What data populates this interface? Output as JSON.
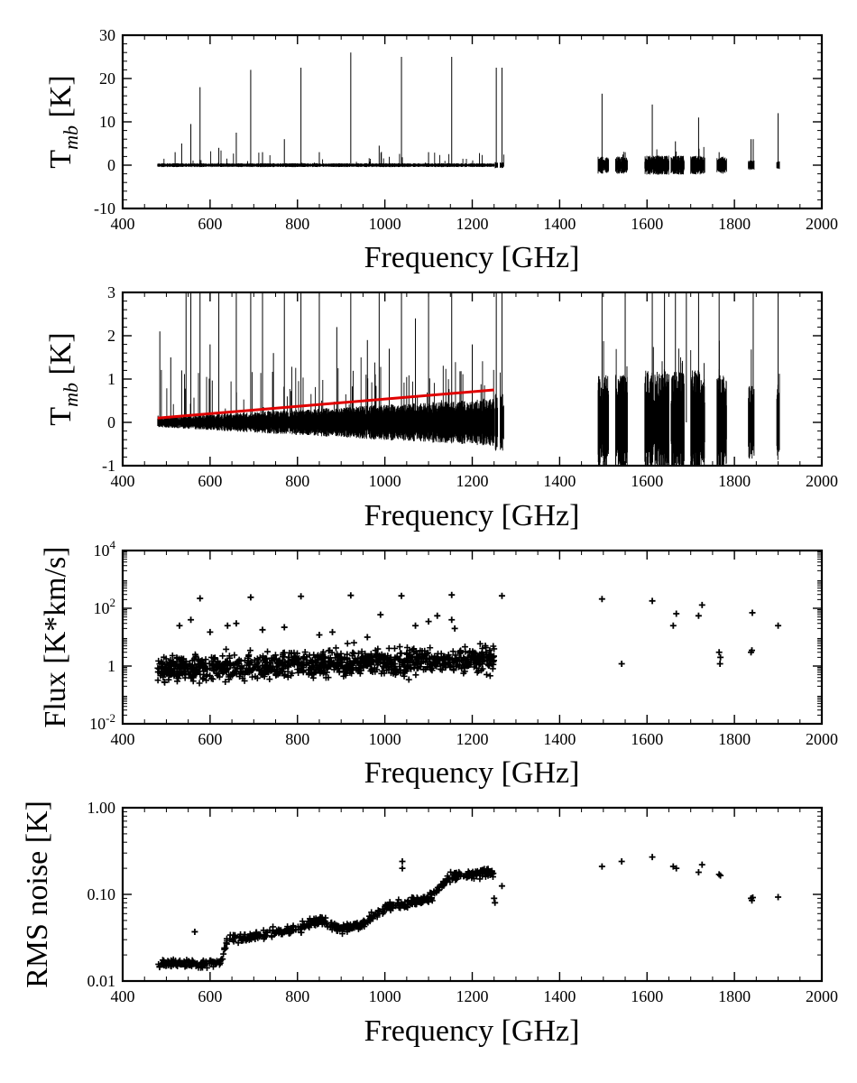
{
  "chart_data": [
    {
      "type": "line",
      "title": "",
      "xlabel": "Frequency [GHz]",
      "ylabel": {
        "main": "T",
        "sub": "mb",
        "unit": " [K]"
      },
      "xlim": [
        400,
        2000
      ],
      "ylim": [
        -10,
        30
      ],
      "xticks": [
        "400",
        "600",
        "800",
        "1000",
        "1200",
        "1400",
        "1600",
        "1800",
        "2000"
      ],
      "yticks": [
        "-10",
        "0",
        "10",
        "20",
        "30"
      ],
      "ytick_values": [
        -10,
        0,
        10,
        20,
        30
      ],
      "bands": [
        {
          "from": 480,
          "to": 1250,
          "noise": 0.4
        },
        {
          "from": 1252,
          "to": 1258,
          "noise": 0.7
        },
        {
          "from": 1264,
          "to": 1272,
          "noise": 0.7
        },
        {
          "from": 1488,
          "to": 1512,
          "noise": 1.8
        },
        {
          "from": 1528,
          "to": 1555,
          "noise": 1.8
        },
        {
          "from": 1595,
          "to": 1650,
          "noise": 2.0
        },
        {
          "from": 1655,
          "to": 1685,
          "noise": 2.0
        },
        {
          "from": 1700,
          "to": 1732,
          "noise": 2.0
        },
        {
          "from": 1760,
          "to": 1782,
          "noise": 1.8
        },
        {
          "from": 1832,
          "to": 1845,
          "noise": 1.0
        },
        {
          "from": 1897,
          "to": 1903,
          "noise": 0.8
        }
      ],
      "lines": [
        {
          "x": 520,
          "y": 3
        },
        {
          "x": 535,
          "y": 5
        },
        {
          "x": 556,
          "y": 9.5
        },
        {
          "x": 577,
          "y": 18
        },
        {
          "x": 620,
          "y": 4
        },
        {
          "x": 660,
          "y": 7.5
        },
        {
          "x": 693,
          "y": 22
        },
        {
          "x": 720,
          "y": 3
        },
        {
          "x": 770,
          "y": 6
        },
        {
          "x": 808,
          "y": 22.5
        },
        {
          "x": 850,
          "y": 3
        },
        {
          "x": 922,
          "y": 26
        },
        {
          "x": 987,
          "y": 4.5
        },
        {
          "x": 1038,
          "y": 25
        },
        {
          "x": 1100,
          "y": 3
        },
        {
          "x": 1153,
          "y": 25
        },
        {
          "x": 1255,
          "y": 22.5
        },
        {
          "x": 1268,
          "y": 22.5
        },
        {
          "x": 1497,
          "y": 16.5
        },
        {
          "x": 1550,
          "y": 3
        },
        {
          "x": 1612,
          "y": 14
        },
        {
          "x": 1665,
          "y": 5.5
        },
        {
          "x": 1718,
          "y": 11
        },
        {
          "x": 1765,
          "y": 3
        },
        {
          "x": 1838,
          "y": 6
        },
        {
          "x": 1843,
          "y": 6
        },
        {
          "x": 1900,
          "y": 12
        }
      ]
    },
    {
      "type": "line",
      "title": "",
      "xlabel": "Frequency [GHz]",
      "ylabel": {
        "main": "T",
        "sub": "mb",
        "unit": " [K]"
      },
      "xlim": [
        400,
        2000
      ],
      "ylim": [
        -1,
        3
      ],
      "xticks": [
        "400",
        "600",
        "800",
        "1000",
        "1200",
        "1400",
        "1600",
        "1800",
        "2000"
      ],
      "yticks": [
        "-1",
        "0",
        "1",
        "2",
        "3"
      ],
      "ytick_values": [
        -1,
        0,
        1,
        2,
        3
      ],
      "baseline_fit": {
        "x": [
          480,
          1250
        ],
        "y": [
          0.1,
          0.75
        ],
        "color": "#e00000"
      },
      "bands": [
        {
          "from": 480,
          "to": 1250,
          "noise_start": 0.1,
          "noise_end": 0.5
        },
        {
          "from": 1252,
          "to": 1258,
          "noise_start": 0.6,
          "noise_end": 0.6
        },
        {
          "from": 1264,
          "to": 1272,
          "noise_start": 0.6,
          "noise_end": 0.6
        },
        {
          "from": 1488,
          "to": 1512,
          "noise_start": 1.0,
          "noise_end": 1.0
        },
        {
          "from": 1528,
          "to": 1555,
          "noise_start": 1.0,
          "noise_end": 1.0
        },
        {
          "from": 1595,
          "to": 1650,
          "noise_start": 1.1,
          "noise_end": 1.1
        },
        {
          "from": 1655,
          "to": 1685,
          "noise_start": 1.1,
          "noise_end": 1.1
        },
        {
          "from": 1700,
          "to": 1732,
          "noise_start": 1.1,
          "noise_end": 1.1
        },
        {
          "from": 1760,
          "to": 1782,
          "noise_start": 1.0,
          "noise_end": 1.0
        },
        {
          "from": 1832,
          "to": 1845,
          "noise_start": 0.8,
          "noise_end": 0.8
        },
        {
          "from": 1897,
          "to": 1903,
          "noise_start": 0.8,
          "noise_end": 0.8
        }
      ],
      "lines": [
        {
          "x": 485,
          "y": 2.1
        },
        {
          "x": 510,
          "y": 1.5
        },
        {
          "x": 535,
          "y": 1.2
        },
        {
          "x": 545,
          "y": 3
        },
        {
          "x": 556,
          "y": 3
        },
        {
          "x": 577,
          "y": 3
        },
        {
          "x": 600,
          "y": 1.8
        },
        {
          "x": 620,
          "y": 3
        },
        {
          "x": 660,
          "y": 3
        },
        {
          "x": 693,
          "y": 3
        },
        {
          "x": 720,
          "y": 3
        },
        {
          "x": 745,
          "y": 1.6
        },
        {
          "x": 770,
          "y": 3
        },
        {
          "x": 808,
          "y": 3
        },
        {
          "x": 850,
          "y": 3
        },
        {
          "x": 890,
          "y": 2.2
        },
        {
          "x": 922,
          "y": 3
        },
        {
          "x": 960,
          "y": 1.9
        },
        {
          "x": 987,
          "y": 3
        },
        {
          "x": 1010,
          "y": 1.7
        },
        {
          "x": 1038,
          "y": 3
        },
        {
          "x": 1070,
          "y": 2.4
        },
        {
          "x": 1100,
          "y": 3
        },
        {
          "x": 1153,
          "y": 3
        },
        {
          "x": 1200,
          "y": 1.8
        },
        {
          "x": 1255,
          "y": 3
        },
        {
          "x": 1268,
          "y": 3
        },
        {
          "x": 1497,
          "y": 3
        },
        {
          "x": 1550,
          "y": 3
        },
        {
          "x": 1612,
          "y": 3
        },
        {
          "x": 1640,
          "y": 3
        },
        {
          "x": 1665,
          "y": 3
        },
        {
          "x": 1690,
          "y": 3
        },
        {
          "x": 1718,
          "y": 3
        },
        {
          "x": 1765,
          "y": 3
        },
        {
          "x": 1843,
          "y": 3
        },
        {
          "x": 1900,
          "y": 3
        }
      ]
    },
    {
      "type": "scatter",
      "title": "",
      "xlabel": "Frequency [GHz]",
      "ylabel": "Flux [K*km/s]",
      "xlim": [
        400,
        2000
      ],
      "ylim_log10": [
        -2,
        4
      ],
      "xticks": [
        "400",
        "600",
        "800",
        "1000",
        "1200",
        "1400",
        "1600",
        "1800",
        "2000"
      ],
      "yticks": [
        {
          "base": "10",
          "exp": "-2",
          "value": 0.01
        },
        {
          "base": "1",
          "exp": "",
          "value": 1
        },
        {
          "base": "10",
          "exp": "2",
          "value": 100
        },
        {
          "base": "10",
          "exp": "4",
          "value": 10000
        }
      ],
      "marker": "+",
      "dense_region": {
        "from": 480,
        "to": 1250,
        "median_log10_start": -0.1,
        "median_log10_end": 0.25,
        "scatter_dex": 0.3
      },
      "points": [
        {
          "x": 530,
          "y": 25
        },
        {
          "x": 556,
          "y": 40
        },
        {
          "x": 577,
          "y": 220
        },
        {
          "x": 600,
          "y": 15
        },
        {
          "x": 640,
          "y": 25
        },
        {
          "x": 660,
          "y": 30
        },
        {
          "x": 693,
          "y": 240
        },
        {
          "x": 720,
          "y": 18
        },
        {
          "x": 770,
          "y": 22
        },
        {
          "x": 808,
          "y": 260
        },
        {
          "x": 850,
          "y": 12
        },
        {
          "x": 880,
          "y": 15
        },
        {
          "x": 922,
          "y": 280
        },
        {
          "x": 960,
          "y": 10
        },
        {
          "x": 990,
          "y": 60
        },
        {
          "x": 1038,
          "y": 270
        },
        {
          "x": 1070,
          "y": 25
        },
        {
          "x": 1100,
          "y": 35
        },
        {
          "x": 1120,
          "y": 55
        },
        {
          "x": 1153,
          "y": 290
        },
        {
          "x": 1153,
          "y": 40
        },
        {
          "x": 1160,
          "y": 20
        },
        {
          "x": 1230,
          "y": 5
        },
        {
          "x": 1268,
          "y": 270
        },
        {
          "x": 1497,
          "y": 210
        },
        {
          "x": 1542,
          "y": 1.2
        },
        {
          "x": 1612,
          "y": 180
        },
        {
          "x": 1660,
          "y": 25
        },
        {
          "x": 1667,
          "y": 65
        },
        {
          "x": 1718,
          "y": 55
        },
        {
          "x": 1726,
          "y": 130
        },
        {
          "x": 1765,
          "y": 3
        },
        {
          "x": 1767,
          "y": 1.2
        },
        {
          "x": 1768,
          "y": 2
        },
        {
          "x": 1838,
          "y": 3
        },
        {
          "x": 1840,
          "y": 3.5
        },
        {
          "x": 1841,
          "y": 70
        },
        {
          "x": 1900,
          "y": 25
        }
      ]
    },
    {
      "type": "scatter",
      "title": "",
      "xlabel": "Frequency [GHz]",
      "ylabel": "RMS noise [K]",
      "xlim": [
        400,
        2000
      ],
      "ylim_log10": [
        -2,
        0
      ],
      "xticks": [
        "400",
        "600",
        "800",
        "1000",
        "1200",
        "1400",
        "1600",
        "1800",
        "2000"
      ],
      "yticks": [
        {
          "label": "0.01",
          "value": 0.01
        },
        {
          "label": "0.10",
          "value": 0.1
        },
        {
          "label": "1.00",
          "value": 1.0
        }
      ],
      "marker": "+",
      "trend": [
        {
          "x": 480,
          "y": 0.016
        },
        {
          "x": 625,
          "y": 0.016
        },
        {
          "x": 640,
          "y": 0.03
        },
        {
          "x": 700,
          "y": 0.033
        },
        {
          "x": 800,
          "y": 0.04
        },
        {
          "x": 850,
          "y": 0.05
        },
        {
          "x": 900,
          "y": 0.04
        },
        {
          "x": 950,
          "y": 0.045
        },
        {
          "x": 1000,
          "y": 0.07
        },
        {
          "x": 1100,
          "y": 0.09
        },
        {
          "x": 1150,
          "y": 0.16
        },
        {
          "x": 1250,
          "y": 0.18
        }
      ],
      "points": [
        {
          "x": 565,
          "y": 0.037
        },
        {
          "x": 1040,
          "y": 0.24
        },
        {
          "x": 1040,
          "y": 0.2
        },
        {
          "x": 1250,
          "y": 0.09
        },
        {
          "x": 1252,
          "y": 0.08
        },
        {
          "x": 1268,
          "y": 0.125
        },
        {
          "x": 1497,
          "y": 0.21
        },
        {
          "x": 1542,
          "y": 0.24
        },
        {
          "x": 1612,
          "y": 0.27
        },
        {
          "x": 1660,
          "y": 0.21
        },
        {
          "x": 1667,
          "y": 0.2
        },
        {
          "x": 1718,
          "y": 0.18
        },
        {
          "x": 1726,
          "y": 0.22
        },
        {
          "x": 1765,
          "y": 0.17
        },
        {
          "x": 1768,
          "y": 0.165
        },
        {
          "x": 1838,
          "y": 0.09
        },
        {
          "x": 1840,
          "y": 0.085
        },
        {
          "x": 1842,
          "y": 0.092
        },
        {
          "x": 1900,
          "y": 0.093
        }
      ]
    }
  ]
}
